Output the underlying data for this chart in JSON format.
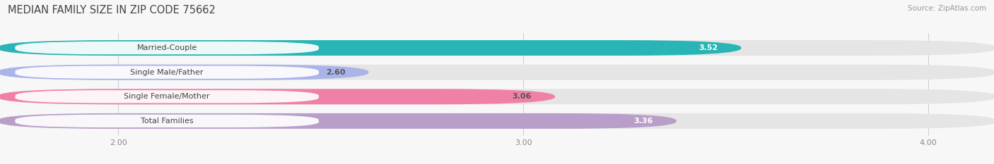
{
  "title": "MEDIAN FAMILY SIZE IN ZIP CODE 75662",
  "source": "Source: ZipAtlas.com",
  "categories": [
    "Married-Couple",
    "Single Male/Father",
    "Single Female/Mother",
    "Total Families"
  ],
  "values": [
    3.52,
    2.6,
    3.06,
    3.36
  ],
  "bar_colors": [
    "#29b5b5",
    "#aab4e8",
    "#f080a8",
    "#b89ec8"
  ],
  "value_labels": [
    "3.52",
    "2.60",
    "3.06",
    "3.36"
  ],
  "value_label_colors": [
    "#ffffff",
    "#555555",
    "#555555",
    "#ffffff"
  ],
  "xlim_min": 1.72,
  "xlim_max": 4.15,
  "xticks": [
    2.0,
    3.0,
    4.0
  ],
  "xtick_labels": [
    "2.00",
    "3.00",
    "4.00"
  ],
  "background_color": "#f7f7f7",
  "bar_track_color": "#e5e5e5",
  "title_fontsize": 10.5,
  "source_fontsize": 7.5,
  "label_fontsize": 8,
  "value_fontsize": 8,
  "tick_fontsize": 8
}
